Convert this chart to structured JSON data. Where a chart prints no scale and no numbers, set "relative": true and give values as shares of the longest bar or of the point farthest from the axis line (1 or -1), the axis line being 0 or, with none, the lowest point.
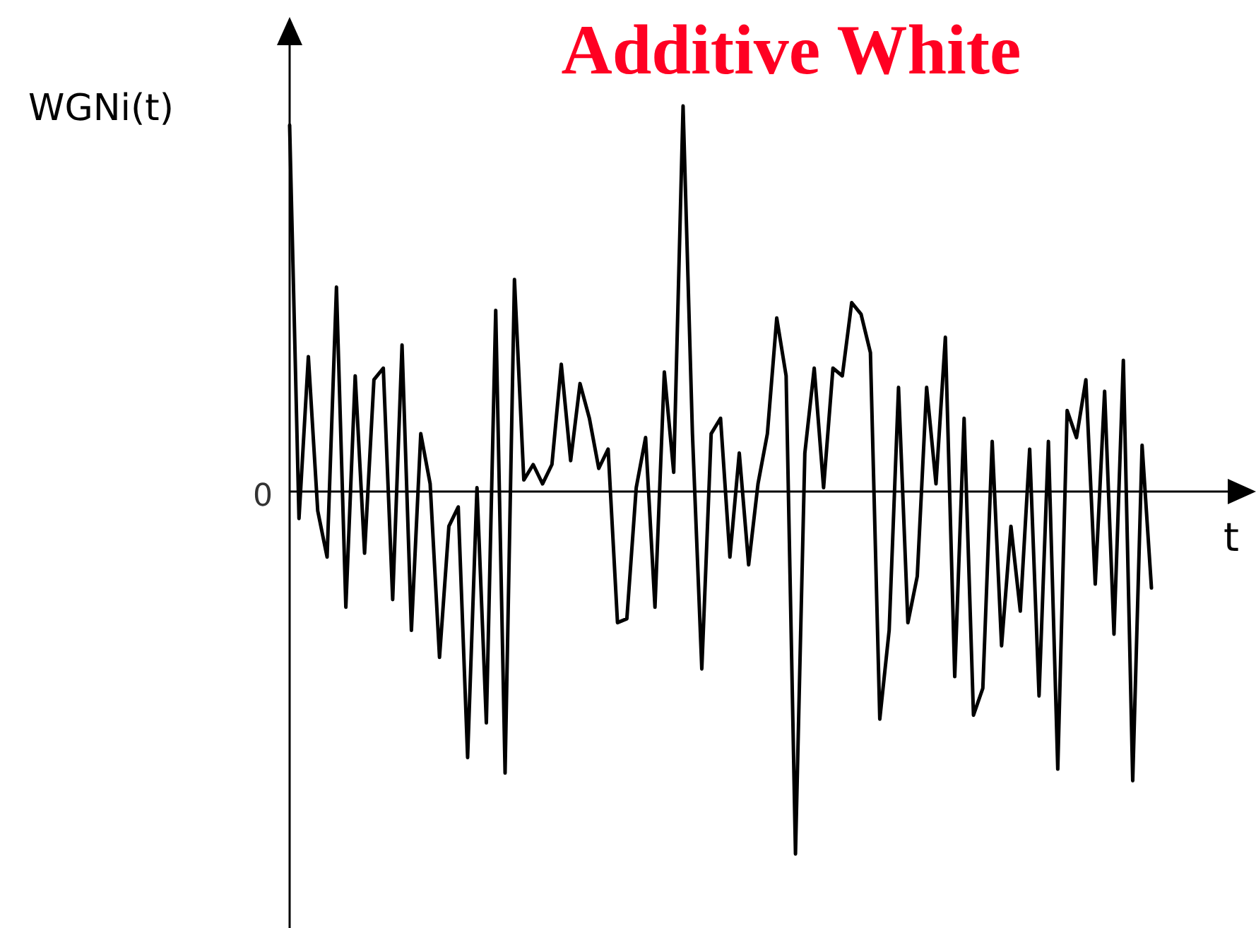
{
  "chart_data": {
    "type": "line",
    "title": "Additive White",
    "ylabel": "WGNi(t)",
    "xlabel": "t",
    "relative": true,
    "annotations": [
      "0"
    ],
    "categories": [
      null,
      null,
      null,
      null,
      null,
      null,
      null,
      null,
      null,
      null,
      null,
      null,
      null,
      null,
      null,
      null,
      null,
      null,
      null,
      null,
      null,
      null,
      null,
      null,
      null,
      null,
      null,
      null,
      null,
      null,
      null,
      null,
      null,
      null,
      null,
      null,
      null,
      null,
      null,
      null,
      null,
      null,
      null,
      null,
      null,
      null,
      null,
      null,
      null,
      null,
      null,
      null,
      null,
      null,
      null,
      null,
      null,
      null,
      null,
      null,
      null,
      null,
      null,
      null,
      null,
      null,
      null,
      null,
      null,
      null,
      null,
      null,
      null,
      null,
      null,
      null,
      null,
      null,
      null,
      null,
      null,
      null,
      null,
      null,
      null,
      null,
      null,
      null,
      null,
      null,
      null,
      null,
      null
    ],
    "series": [
      {
        "color": "#000000",
        "values": [
          0.95,
          -0.07,
          0.35,
          -0.05,
          -0.17,
          0.53,
          -0.3,
          0.3,
          -0.16,
          0.29,
          0.32,
          -0.28,
          0.38,
          -0.36,
          0.15,
          0.02,
          -0.43,
          -0.09,
          -0.04,
          -0.69,
          0.01,
          -0.6,
          0.47,
          -0.73,
          0.55,
          0.03,
          0.07,
          0.02,
          0.07,
          0.33,
          0.08,
          0.28,
          0.19,
          0.06,
          0.11,
          -0.34,
          -0.33,
          0.01,
          0.14,
          -0.3,
          0.31,
          0.05,
          1,
          0.15,
          -0.46,
          0.15,
          0.19,
          -0.17,
          0.1,
          -0.19,
          0.02,
          0.15,
          0.45,
          0.3,
          -0.94,
          0.1,
          0.32,
          0.01,
          0.32,
          0.3,
          0.49,
          0.46,
          0.36,
          -0.59,
          -0.36,
          0.27,
          -0.34,
          -0.22,
          0.27,
          0.02,
          0.4,
          -0.48,
          0.19,
          -0.58,
          -0.51,
          0.13,
          -0.4,
          -0.09,
          -0.31,
          0.11,
          -0.53,
          0.13,
          -0.72,
          0.21,
          0.14,
          0.29,
          -0.24,
          0.26,
          -0.37,
          0.34,
          -0.75,
          0.12,
          -0.25
        ]
      }
    ]
  }
}
